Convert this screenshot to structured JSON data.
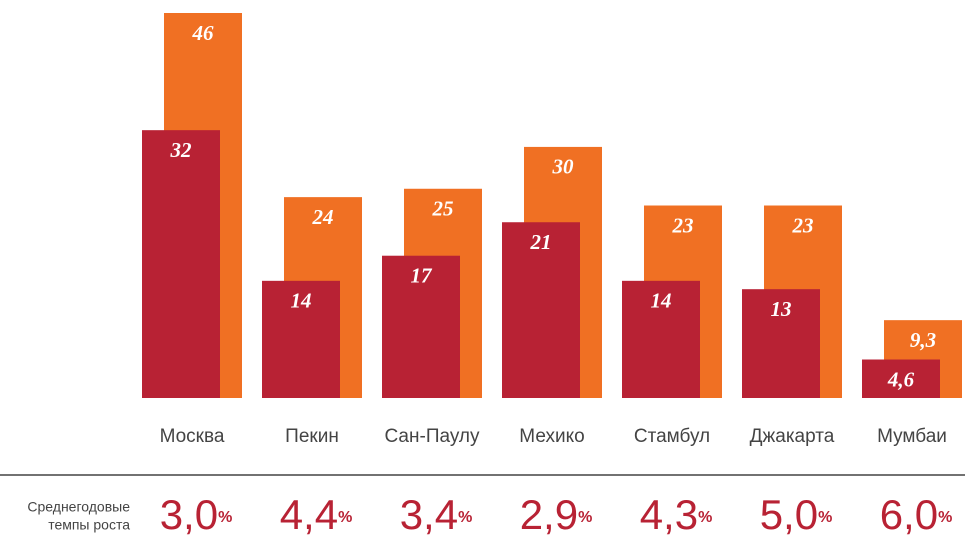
{
  "chart_data": {
    "type": "bar",
    "categories": [
      "Москва",
      "Пекин",
      "Сан-Паулу",
      "Мехико",
      "Стамбул",
      "Джакарта",
      "Мумбаи"
    ],
    "series": [
      {
        "color": "#b82234",
        "values": [
          32,
          14,
          17,
          21,
          14,
          13,
          4.6
        ],
        "value_labels": [
          "32",
          "14",
          "17",
          "21",
          "14",
          "13",
          "4,6"
        ]
      },
      {
        "color": "#f07023",
        "values": [
          46,
          24,
          25,
          30,
          23,
          23,
          9.3
        ],
        "value_labels": [
          "46",
          "24",
          "25",
          "30",
          "23",
          "23",
          "9,3"
        ]
      }
    ],
    "ylim": [
      0,
      46
    ],
    "growth": {
      "label": [
        "Среднегодовые",
        "темпы роста"
      ],
      "color": "#b82234",
      "values": [
        3.0,
        4.4,
        3.4,
        2.9,
        4.3,
        5.0,
        6.0
      ],
      "value_labels": [
        "3,0",
        "4,4",
        "3,4",
        "2,9",
        "4,3",
        "5,0",
        "6,0"
      ],
      "unit": "%"
    }
  }
}
